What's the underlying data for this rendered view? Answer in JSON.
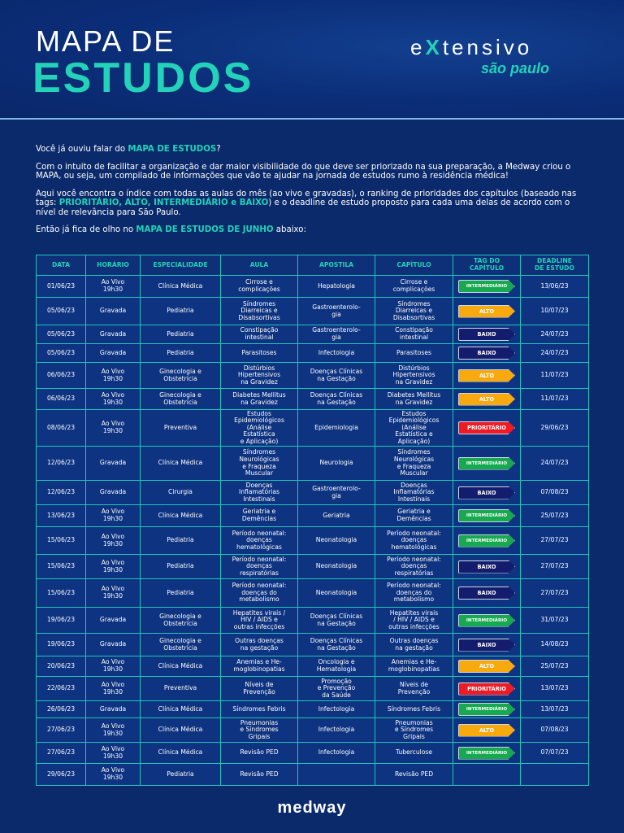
{
  "header": {
    "title_line1": "MAPA DE",
    "title_line2": "ESTUDOS",
    "logo_line1_pre": "e",
    "logo_line1_x": "X",
    "logo_line1_post": "tensivo",
    "logo_line2": "são paulo"
  },
  "intro": {
    "p1_a": "Você já ouviu falar do ",
    "p1_b": "MAPA DE ESTUDOS",
    "p1_c": "?",
    "p2": "Com o intuito de facilitar a organização e dar maior visibilidade do que deve ser priorizado na sua preparação, a Medway criou o MAPA, ou seja, um compilado de informações que vão te ajudar na jornada de estudos rumo à residência médica!",
    "p3_a": "Aqui você encontra o índice com todas as aulas do mês (ao vivo e gravadas), o  ranking  de prioridades dos capítulos (baseado nas tags: ",
    "p3_b": "PRIORITÁRIO, ALTO, INTERMEDIÁRIO e BAIXO",
    "p3_c": ") e o deadline de estudo proposto para cada uma delas de acordo com o nível de relevância para São Paulo.",
    "p4_a": "Então já fica de olho no ",
    "p4_b": "MAPA DE ESTUDOS DE JUNHO",
    "p4_c": " abaixo:"
  },
  "table": {
    "headers": [
      "DATA",
      "HORÁRIO",
      "ESPECIALIDADE",
      "AULA",
      "APOSTILA",
      "CAPÍTULO",
      "TAG DO\nCAPÍTULO",
      "DEADLINE\nDE ESTUDO"
    ],
    "tag_colors": {
      "INTERMEDIÁRIO": "#16a94f",
      "ALTO": "#f7a90d",
      "BAIXO": "#141c6e",
      "PRIORITÁRIO": "#ee1b24"
    },
    "rows": [
      [
        "01/06/23",
        "Ao Vivo\n19h30",
        "Clínica Médica",
        "Cirrose e\ncomplicações",
        "Hepatologia",
        "Cirrose e\ncomplicações",
        "INTERMEDIÁRIO",
        "13/06/23"
      ],
      [
        "05/06/23",
        "Gravada",
        "Pediatria",
        "Síndromes\nDiarreicas e\nDisabsortivas",
        "Gastroenterolo-\ngia",
        "Síndromes\nDiarreicas e\nDisabsortivas",
        "ALTO",
        "10/07/23"
      ],
      [
        "05/06/23",
        "Gravada",
        "Pediatria",
        "Constipação\nintestinal",
        "Gastroenterolo-\ngia",
        "Constipação\nintestinal",
        "BAIXO",
        "24/07/23"
      ],
      [
        "05/06/23",
        "Gravada",
        "Pediatria",
        "Parasitoses",
        "Infectologia",
        "Parasitoses",
        "BAIXO",
        "24/07/23"
      ],
      [
        "06/06/23",
        "Ao Vivo\n19h30",
        "Ginecologia e\nObstetrícia",
        "Distúrbios\nHipertensivos\nna Gravidez",
        "Doenças Clínicas\nna Gestação",
        "Distúrbios\nHipertensivos\nna Gravidez",
        "ALTO",
        "11/07/23"
      ],
      [
        "06/06/23",
        "Ao Vivo\n19h30",
        "Ginecologia e\nObstetrícia",
        "Diabetes Mellitus\nna Gravidez",
        "Doenças Clínicas\nna Gestação",
        "Diabetes Mellitus\nna Gravidez",
        "ALTO",
        "11/07/23"
      ],
      [
        "08/06/23",
        "Ao Vivo\n19h30",
        "Preventiva",
        "Estudos\nEpidemiológicos\n(Análise\nEstatística\ne Aplicação)",
        "Epidemiologia",
        "Estudos\nEpidemiológicos\n(Análise\nEstatística e\nAplicação)",
        "PRIORITÁRIO",
        "29/06/23"
      ],
      [
        "12/06/23",
        "Gravada",
        "Clínica Médica",
        "Síndromes\nNeurológicas\ne Fraqueza\nMuscular",
        "Neurologia",
        "Síndromes\nNeurológicas\ne Fraqueza\nMuscular",
        "INTERMEDIÁRIO",
        "24/07/23"
      ],
      [
        "12/06/23",
        "Gravada",
        "Cirurgia",
        "Doenças\nInflamatórias\nIntestinais",
        "Gastroenterolo-\ngia",
        "Doenças\nInflamatórias\nIntestinais",
        "BAIXO",
        "07/08/23"
      ],
      [
        "13/06/23",
        "Ao Vivo\n19h30",
        "Clínica Médica",
        "Geriatria e\nDemências",
        "Geriatria",
        "Geriatria e\nDemências",
        "INTERMEDIÁRIO",
        "25/07/23"
      ],
      [
        "15/06/23",
        "Ao Vivo\n19h30",
        "Pediatria",
        "Período neonatal:\ndoenças\nhematológicas",
        "Neonatologia",
        "Período neonatal:\ndoenças\nhematológicas",
        "INTERMEDIÁRIO",
        "27/07/23"
      ],
      [
        "15/06/23",
        "Ao Vivo\n19h30",
        "Pediatria",
        "Período neonatal:\ndoenças\nrespiratórias",
        "Neonatologia",
        "Período neonatal:\ndoenças\nrespiratórias",
        "BAIXO",
        "27/07/23"
      ],
      [
        "15/06/23",
        "Ao Vivo\n19h30",
        "Pediatria",
        "Período neonatal:\ndoenças do\nmetabolismo",
        "Neonatologia",
        "Período neonatal:\ndoenças do\nmetabolismo",
        "BAIXO",
        "27/07/23"
      ],
      [
        "19/06/23",
        "Gravada",
        "Ginecologia e\nObstetrícia",
        "Hepatites virais /\nHIV / AIDS e\noutras infecções",
        "Doenças Clínicas\nna Gestação",
        "Hepatites virais\n/ HIV / AIDS e\noutras infecções",
        "INTERMEDIÁRIO",
        "31/07/23"
      ],
      [
        "19/06/23",
        "Gravada",
        "Ginecologia e\nObstetrícia",
        "Outras doenças\nna gestação",
        "Doenças Clínicas\nna Gestação",
        "Outras doenças\nna gestação",
        "BAIXO",
        "14/08/23"
      ],
      [
        "20/06/23",
        "Ao Vivo\n19h30",
        "Clínica Médica",
        "Anemias e He-\nmoglobinopatias",
        "Oncologia e\nHematologia",
        "Anemias e He-\nmoglobinopatias",
        "ALTO",
        "25/07/23"
      ],
      [
        "22/06/23",
        "Ao Vivo\n19h30",
        "Preventiva",
        "Níveis de\nPrevenção",
        "Promoção\ne Prevenção\nda Saúde",
        "Níveis de\nPrevenção",
        "PRIORITÁRIO",
        "13/07/23"
      ],
      [
        "26/06/23",
        "Gravada",
        "Clínica Médica",
        "Síndromes Febris",
        "Infectologia",
        "Síndromes Febris",
        "INTERMEDIÁRIO",
        "13/07/23"
      ],
      [
        "27/06/23",
        "Ao Vivo\n19h30",
        "Clínica Médica",
        "Pneumonias\ne Síndromes\nGripais",
        "Infectologia",
        "Pneumonias\ne Síndromes\nGripais",
        "ALTO",
        "07/08/23"
      ],
      [
        "27/06/23",
        "Ao Vivo\n19h30",
        "Clínica Médica",
        "Revisão PED",
        "Infectologia",
        "Tuberculose",
        "INTERMEDIÁRIO",
        "07/07/23"
      ],
      [
        "29/06/23",
        "Ao Vivo\n19h30",
        "Pediatria",
        "Revisão PED",
        "",
        "Revisão PED",
        "",
        ""
      ]
    ]
  },
  "footer": {
    "brand": "medway"
  }
}
